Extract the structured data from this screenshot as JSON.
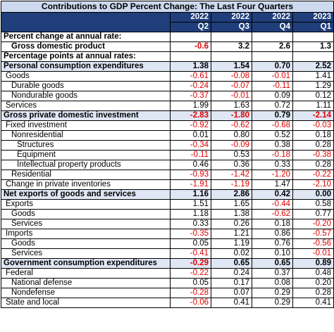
{
  "title": "Contributions to GDP Percent Change: The Last Four Quarters",
  "years": [
    "2022",
    "2022",
    "2022",
    "2023"
  ],
  "quarters": [
    "Q2",
    "Q3",
    "Q4",
    "Q1"
  ],
  "rows": [
    {
      "label": "Percent change at annual rate:",
      "values": [
        "",
        "",
        "",
        ""
      ],
      "indent": 0,
      "bold": true,
      "shade": false
    },
    {
      "label": "Gross domestic product",
      "values": [
        "-0.6",
        "3.2",
        "2.6",
        "1.3"
      ],
      "indent": 2,
      "bold": true,
      "shade": false
    },
    {
      "label": "Percentage points at annual rates:",
      "values": [
        "",
        "",
        "",
        ""
      ],
      "indent": 0,
      "bold": true,
      "shade": false
    },
    {
      "label": "Personal consumption expenditures",
      "values": [
        "1.38",
        "1.54",
        "0.70",
        "2.52"
      ],
      "indent": 0,
      "bold": true,
      "shade": true
    },
    {
      "label": "Goods",
      "values": [
        "-0.61",
        "-0.08",
        "-0.01",
        "1.41"
      ],
      "indent": 1,
      "bold": false,
      "shade": false
    },
    {
      "label": "Durable goods",
      "values": [
        "-0.24",
        "-0.07",
        "-0.11",
        "1.29"
      ],
      "indent": 2,
      "bold": false,
      "shade": false
    },
    {
      "label": "Nondurable goods",
      "values": [
        "-0.37",
        "-0.01",
        "0.09",
        "0.12"
      ],
      "indent": 2,
      "bold": false,
      "shade": false
    },
    {
      "label": "Services",
      "values": [
        "1.99",
        "1.63",
        "0.72",
        "1.11"
      ],
      "indent": 1,
      "bold": false,
      "shade": false
    },
    {
      "label": "Gross private domestic investment",
      "values": [
        "-2.83",
        "-1.80",
        "0.79",
        "-2.14"
      ],
      "indent": 0,
      "bold": true,
      "shade": true
    },
    {
      "label": "Fixed investment",
      "values": [
        "-0.92",
        "-0.62",
        "-0.68",
        "-0.03"
      ],
      "indent": 1,
      "bold": false,
      "shade": false
    },
    {
      "label": "Nonresidential",
      "values": [
        "0.01",
        "0.80",
        "0.52",
        "0.18"
      ],
      "indent": 2,
      "bold": false,
      "shade": false
    },
    {
      "label": "Structures",
      "values": [
        "-0.34",
        "-0.09",
        "0.38",
        "0.28"
      ],
      "indent": 3,
      "bold": false,
      "shade": false
    },
    {
      "label": "Equipment",
      "values": [
        "-0.11",
        "0.53",
        "-0.18",
        "-0.38"
      ],
      "indent": 3,
      "bold": false,
      "shade": false
    },
    {
      "label": "Intellectual property products",
      "values": [
        "0.46",
        "0.36",
        "0.33",
        "0.28"
      ],
      "indent": 3,
      "bold": false,
      "shade": false
    },
    {
      "label": "Residential",
      "values": [
        "-0.93",
        "-1.42",
        "-1.20",
        "-0.22"
      ],
      "indent": 2,
      "bold": false,
      "shade": false
    },
    {
      "label": "Change in private inventories",
      "values": [
        "-1.91",
        "-1.19",
        "1.47",
        "-2.10"
      ],
      "indent": 1,
      "bold": false,
      "shade": false
    },
    {
      "label": "Net exports of goods and services",
      "values": [
        "1.16",
        "2.86",
        "0.42",
        "0.00"
      ],
      "indent": 0,
      "bold": true,
      "shade": true
    },
    {
      "label": "Exports",
      "values": [
        "1.51",
        "1.65",
        "-0.44",
        "0.58"
      ],
      "indent": 1,
      "bold": false,
      "shade": false
    },
    {
      "label": "Goods",
      "values": [
        "1.18",
        "1.38",
        "-0.62",
        "0.77"
      ],
      "indent": 2,
      "bold": false,
      "shade": false
    },
    {
      "label": "Services",
      "values": [
        "0.33",
        "0.26",
        "0.18",
        "-0.20"
      ],
      "indent": 2,
      "bold": false,
      "shade": false
    },
    {
      "label": "Imports",
      "values": [
        "-0.35",
        "1.21",
        "0.86",
        "-0.57"
      ],
      "indent": 1,
      "bold": false,
      "shade": false
    },
    {
      "label": "Goods",
      "values": [
        "0.05",
        "1.19",
        "0.76",
        "-0.56"
      ],
      "indent": 2,
      "bold": false,
      "shade": false
    },
    {
      "label": "Services",
      "values": [
        "-0.41",
        "0.02",
        "0.10",
        "-0.01"
      ],
      "indent": 2,
      "bold": false,
      "shade": false
    },
    {
      "label": "Government consumption expenditures",
      "values": [
        "-0.29",
        "0.65",
        "0.65",
        "0.89"
      ],
      "indent": 0,
      "bold": true,
      "shade": true
    },
    {
      "label": "Federal",
      "values": [
        "-0.22",
        "0.24",
        "0.37",
        "0.48"
      ],
      "indent": 1,
      "bold": false,
      "shade": false
    },
    {
      "label": "National defense",
      "values": [
        "0.05",
        "0.17",
        "0.08",
        "0.20"
      ],
      "indent": 2,
      "bold": false,
      "shade": false
    },
    {
      "label": "Nondefense",
      "values": [
        "-0.28",
        "0.07",
        "0.29",
        "0.28"
      ],
      "indent": 2,
      "bold": false,
      "shade": false
    },
    {
      "label": "State and local",
      "values": [
        "-0.06",
        "0.41",
        "0.29",
        "0.41"
      ],
      "indent": 1,
      "bold": false,
      "shade": false
    }
  ]
}
